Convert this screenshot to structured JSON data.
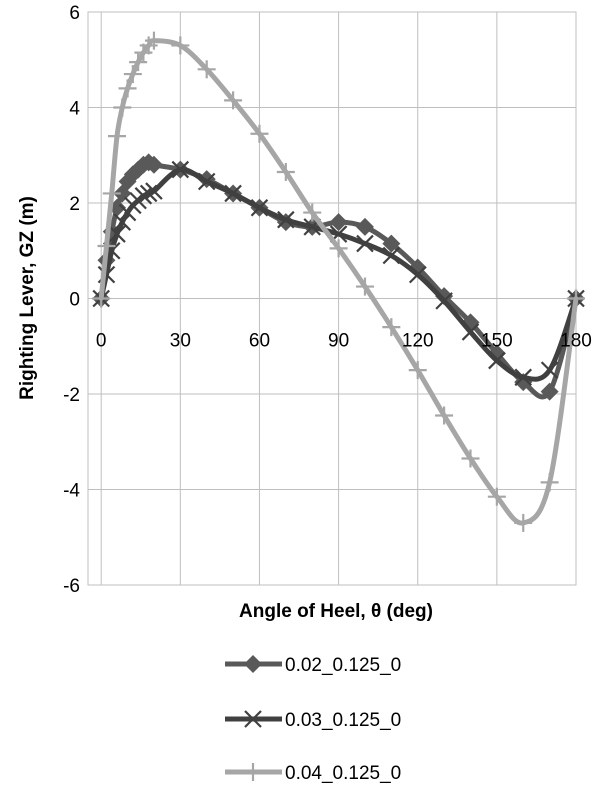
{
  "chart_data": {
    "type": "line",
    "xlabel": "Angle of Heel, θ (deg)",
    "ylabel": "Righting Lever, GZ (m)",
    "xlim": [
      -5,
      180
    ],
    "ylim": [
      -6,
      6
    ],
    "xticks": [
      0,
      30,
      60,
      90,
      120,
      150,
      180
    ],
    "yticks": [
      -6,
      -4,
      -2,
      0,
      2,
      4,
      6
    ],
    "grid": true,
    "legend_position": "bottom",
    "series": [
      {
        "name": "0.02_0.125_0",
        "marker": "diamond",
        "color": "#595959",
        "x": [
          0,
          2,
          4,
          6,
          8,
          10,
          12,
          14,
          16,
          18,
          20,
          30,
          40,
          50,
          60,
          70,
          80,
          90,
          100,
          110,
          120,
          130,
          140,
          150,
          160,
          170,
          180
        ],
        "y": [
          0,
          0.8,
          1.4,
          1.9,
          2.2,
          2.45,
          2.6,
          2.7,
          2.8,
          2.85,
          2.8,
          2.7,
          2.5,
          2.2,
          1.9,
          1.6,
          1.5,
          1.6,
          1.5,
          1.15,
          0.65,
          0.05,
          -0.5,
          -1.15,
          -1.75,
          -1.95,
          0
        ]
      },
      {
        "name": "0.03_0.125_0",
        "marker": "x",
        "color": "#404040",
        "x": [
          0,
          2,
          4,
          6,
          8,
          10,
          12,
          14,
          16,
          18,
          20,
          30,
          40,
          50,
          60,
          70,
          80,
          90,
          100,
          110,
          120,
          130,
          140,
          150,
          160,
          170,
          180
        ],
        "y": [
          0,
          0.5,
          1.0,
          1.35,
          1.6,
          1.8,
          1.95,
          2.05,
          2.15,
          2.2,
          2.25,
          2.7,
          2.45,
          2.2,
          1.9,
          1.65,
          1.5,
          1.35,
          1.15,
          0.9,
          0.5,
          -0.05,
          -0.7,
          -1.3,
          -1.65,
          -1.5,
          0
        ]
      },
      {
        "name": "0.04_0.125_0",
        "marker": "plus",
        "color": "#a6a6a6",
        "x": [
          0,
          2,
          4,
          6,
          8,
          10,
          12,
          14,
          16,
          18,
          20,
          30,
          40,
          50,
          60,
          70,
          80,
          90,
          100,
          110,
          120,
          130,
          140,
          150,
          160,
          170,
          180
        ],
        "y": [
          0,
          1.1,
          2.2,
          3.4,
          4.0,
          4.4,
          4.7,
          4.95,
          5.15,
          5.3,
          5.4,
          5.3,
          4.8,
          4.15,
          3.45,
          2.65,
          1.8,
          1.05,
          0.25,
          -0.6,
          -1.5,
          -2.45,
          -3.35,
          -4.15,
          -4.7,
          -3.85,
          0
        ]
      }
    ]
  }
}
